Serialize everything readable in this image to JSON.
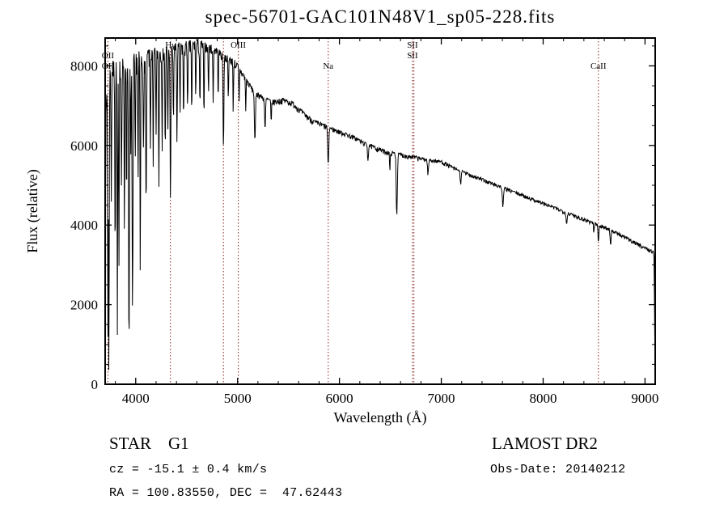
{
  "chart_data": {
    "type": "line",
    "title": "spec-56701-GAC101N48V1_sp05-228.fits",
    "xlabel": "Wavelength (Å)",
    "ylabel": "Flux (relative)",
    "xlim": [
      3700,
      9100
    ],
    "ylim": [
      0,
      8700
    ],
    "x_major_ticks": [
      4000,
      5000,
      6000,
      7000,
      8000,
      9000
    ],
    "x_minor_step": 200,
    "y_major_ticks": [
      0,
      2000,
      4000,
      6000,
      8000
    ],
    "y_minor_step": 500,
    "grid": false,
    "legend": "none",
    "line_color": "#000000",
    "feature_line_color": "#8b2323",
    "noise_seed": 7,
    "spectral_lines": [
      {
        "wavelength": 3727,
        "labels": [
          {
            "text": "OII",
            "row": 1
          },
          {
            "text": "OII",
            "row": 2
          }
        ]
      },
      {
        "wavelength": 4341,
        "labels": [
          {
            "text": "Hγ",
            "row": 0
          }
        ]
      },
      {
        "wavelength": 4861,
        "labels": []
      },
      {
        "wavelength": 5007,
        "labels": [
          {
            "text": "OIII",
            "row": 0
          }
        ]
      },
      {
        "wavelength": 5890,
        "labels": [
          {
            "text": "Na",
            "row": 2
          }
        ]
      },
      {
        "wavelength": 6717,
        "labels": [
          {
            "text": "SII",
            "row": 0
          },
          {
            "text": "SII",
            "row": 1
          }
        ]
      },
      {
        "wavelength": 6731,
        "labels": []
      },
      {
        "wavelength": 8542,
        "labels": [
          {
            "text": "CaII",
            "row": 2
          }
        ]
      }
    ],
    "continuum": [
      [
        3700,
        6000
      ],
      [
        3720,
        7600
      ],
      [
        3760,
        7900
      ],
      [
        3800,
        8000
      ],
      [
        3850,
        8050
      ],
      [
        3900,
        8100
      ],
      [
        3950,
        8150
      ],
      [
        4000,
        8200
      ],
      [
        4100,
        8250
      ],
      [
        4200,
        8350
      ],
      [
        4300,
        8400
      ],
      [
        4400,
        8450
      ],
      [
        4500,
        8500
      ],
      [
        4600,
        8550
      ],
      [
        4700,
        8500
      ],
      [
        4800,
        8400
      ],
      [
        4860,
        8250
      ],
      [
        4950,
        8150
      ],
      [
        5000,
        8000
      ],
      [
        5050,
        7800
      ],
      [
        5100,
        7600
      ],
      [
        5150,
        7400
      ],
      [
        5250,
        7200
      ],
      [
        5350,
        7100
      ],
      [
        5450,
        7150
      ],
      [
        5550,
        7050
      ],
      [
        5650,
        6800
      ],
      [
        5750,
        6600
      ],
      [
        5850,
        6500
      ],
      [
        5950,
        6400
      ],
      [
        6050,
        6300
      ],
      [
        6150,
        6200
      ],
      [
        6250,
        6050
      ],
      [
        6350,
        5950
      ],
      [
        6450,
        5850
      ],
      [
        6550,
        5800
      ],
      [
        6650,
        5750
      ],
      [
        6750,
        5700
      ],
      [
        6850,
        5650
      ],
      [
        7000,
        5600
      ],
      [
        7150,
        5400
      ],
      [
        7300,
        5250
      ],
      [
        7450,
        5100
      ],
      [
        7600,
        4950
      ],
      [
        7750,
        4800
      ],
      [
        7900,
        4650
      ],
      [
        8050,
        4500
      ],
      [
        8200,
        4350
      ],
      [
        8350,
        4200
      ],
      [
        8500,
        4050
      ],
      [
        8650,
        3900
      ],
      [
        8800,
        3700
      ],
      [
        8950,
        3500
      ],
      [
        9100,
        3300
      ]
    ],
    "absorption_dips": [
      [
        3700,
        7500,
        2
      ],
      [
        3727,
        6500,
        3
      ],
      [
        3737,
        7800,
        3
      ],
      [
        3760,
        3200,
        3
      ],
      [
        3798,
        4800,
        3
      ],
      [
        3820,
        6800,
        3
      ],
      [
        3835,
        5400,
        3
      ],
      [
        3860,
        3000,
        3
      ],
      [
        3889,
        4600,
        3
      ],
      [
        3910,
        3300,
        3
      ],
      [
        3934,
        7200,
        4
      ],
      [
        3952,
        2500,
        3
      ],
      [
        3969,
        6400,
        4
      ],
      [
        3995,
        2800,
        3
      ],
      [
        4023,
        3200,
        3
      ],
      [
        4045,
        5600,
        3
      ],
      [
        4077,
        2600,
        3
      ],
      [
        4102,
        4000,
        4
      ],
      [
        4144,
        2400,
        3
      ],
      [
        4172,
        2900,
        3
      ],
      [
        4200,
        2100,
        3
      ],
      [
        4227,
        3400,
        3
      ],
      [
        4260,
        2300,
        3
      ],
      [
        4290,
        2700,
        3
      ],
      [
        4315,
        2200,
        3
      ],
      [
        4341,
        3600,
        4
      ],
      [
        4370,
        1900,
        3
      ],
      [
        4405,
        2400,
        3
      ],
      [
        4435,
        1700,
        3
      ],
      [
        4470,
        2000,
        3
      ],
      [
        4510,
        1500,
        3
      ],
      [
        4550,
        1800,
        3
      ],
      [
        4590,
        1300,
        3
      ],
      [
        4630,
        1600,
        3
      ],
      [
        4670,
        1900,
        3
      ],
      [
        4715,
        1200,
        3
      ],
      [
        4760,
        1400,
        3
      ],
      [
        4810,
        1100,
        3
      ],
      [
        4861,
        2300,
        4
      ],
      [
        4910,
        1000,
        3
      ],
      [
        4957,
        1200,
        3
      ],
      [
        5015,
        900,
        3
      ],
      [
        5080,
        800,
        3
      ],
      [
        5170,
        1300,
        5
      ],
      [
        5270,
        800,
        4
      ],
      [
        5330,
        600,
        3
      ],
      [
        5890,
        1000,
        5
      ],
      [
        6280,
        400,
        4
      ],
      [
        6495,
        500,
        3
      ],
      [
        6563,
        1550,
        5
      ],
      [
        6870,
        350,
        5
      ],
      [
        7190,
        300,
        5
      ],
      [
        7605,
        450,
        6
      ],
      [
        8230,
        300,
        5
      ],
      [
        8498,
        250,
        3
      ],
      [
        8542,
        450,
        4
      ],
      [
        8662,
        400,
        4
      ],
      [
        9097,
        2300,
        4
      ]
    ],
    "noise_regions": [
      [
        3700,
        4150,
        430
      ],
      [
        4150,
        4650,
        290
      ],
      [
        4650,
        5100,
        170
      ],
      [
        5100,
        5900,
        110
      ],
      [
        5900,
        6800,
        85
      ],
      [
        6800,
        7600,
        70
      ],
      [
        7600,
        9101,
        65
      ]
    ]
  },
  "footer": {
    "classification": "STAR    G1",
    "survey": "LAMOST DR2",
    "cz": "cz = -15.1 ± 0.4 km/s",
    "obs_date": "Obs-Date: 20140212",
    "ra_dec": "RA = 100.83550, DEC =  47.62443"
  }
}
